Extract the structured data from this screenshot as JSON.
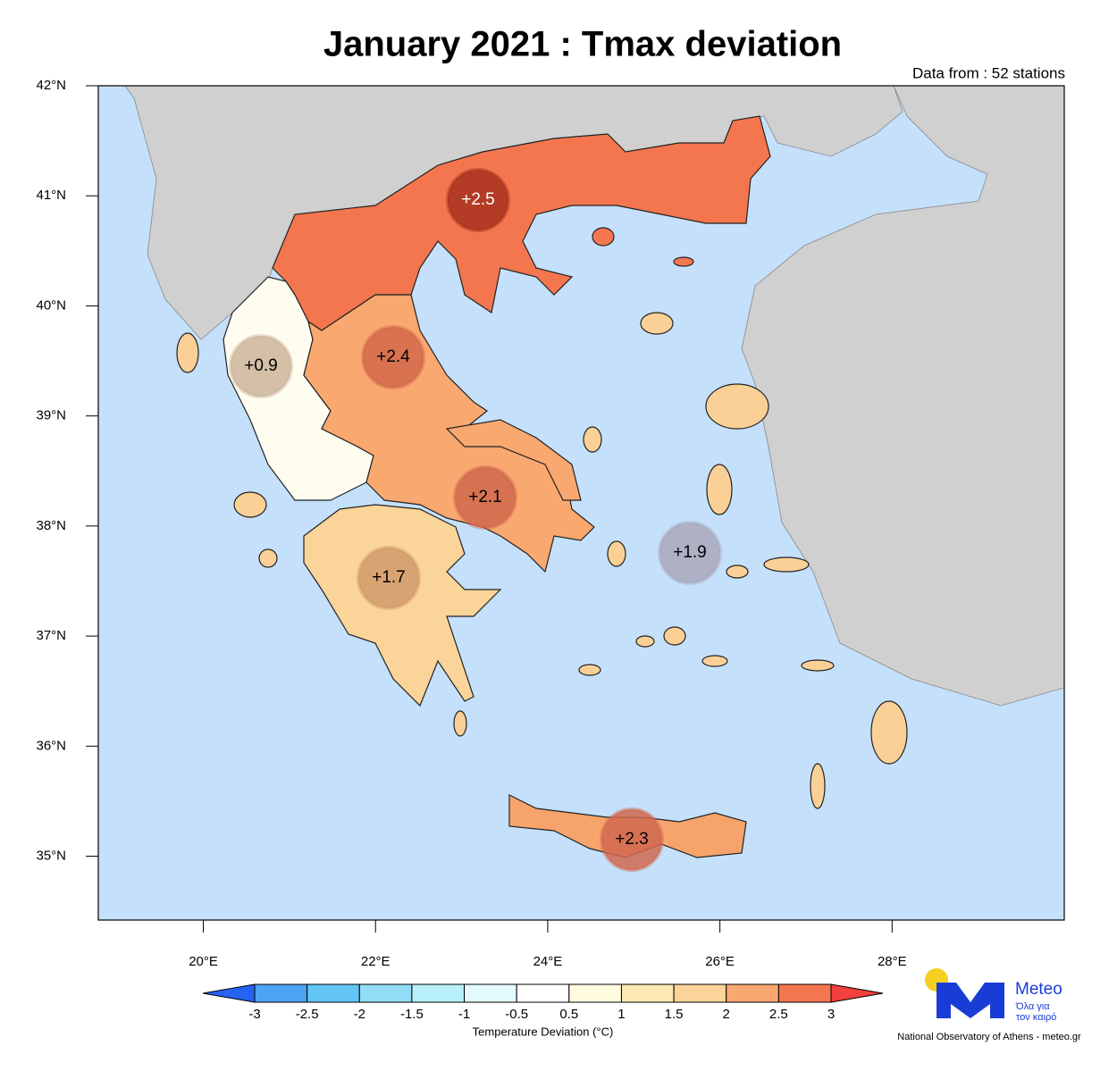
{
  "chart_data": {
    "type": "map",
    "title": "January 2021 : Tmax deviation",
    "subtitle": "Data from : 52 stations",
    "xlim": [
      18.78,
      30
    ],
    "ylim": [
      34.42,
      42
    ],
    "xticks": [
      {
        "value": 20,
        "label": "20°E"
      },
      {
        "value": 22,
        "label": "22°E"
      },
      {
        "value": 24,
        "label": "24°E"
      },
      {
        "value": 26,
        "label": "26°E"
      },
      {
        "value": 28,
        "label": "28°E"
      }
    ],
    "yticks": [
      {
        "value": 35,
        "label": "35°N"
      },
      {
        "value": 36,
        "label": "36°N"
      },
      {
        "value": 37,
        "label": "37°N"
      },
      {
        "value": 38,
        "label": "38°N"
      },
      {
        "value": 39,
        "label": "39°N"
      },
      {
        "value": 40,
        "label": "40°N"
      },
      {
        "value": 41,
        "label": "41°N"
      },
      {
        "value": 42,
        "label": "42°N"
      }
    ],
    "values": [
      2.5,
      2.4,
      0.9,
      2.1,
      1.7,
      1.9,
      2.3
    ],
    "value_labels": [
      "+2.5",
      "+2.4",
      "+0.9",
      "+2.1",
      "+1.7",
      "+1.9",
      "+2.3"
    ],
    "colors": [
      "#a8321f",
      "#d2684a",
      "#cdb49a",
      "#d0684c",
      "#d19a6b",
      "#a9a8bb",
      "#d0694f"
    ],
    "colorbar": {
      "label": "Temperature Deviation (°C)",
      "levels": [
        -3,
        -2.5,
        -2,
        -1.5,
        -1,
        -0.5,
        0.5,
        1,
        1.5,
        2,
        2.5,
        3
      ],
      "colors": [
        "#2563f5",
        "#4ea2f2",
        "#63c4f6",
        "#92ddf6",
        "#b8f0fa",
        "#e3fbfd",
        "#ffffff",
        "#fffbdf",
        "#fbe8b4",
        "#fbd49a",
        "#f9a870",
        "#f4764f",
        "#f2403f"
      ]
    }
  },
  "footer": {
    "brand": "Meteo",
    "tagline_1": "Όλα για",
    "tagline_2": "τον καιρό",
    "credit": "National Observatory of Athens - meteo.gr"
  }
}
